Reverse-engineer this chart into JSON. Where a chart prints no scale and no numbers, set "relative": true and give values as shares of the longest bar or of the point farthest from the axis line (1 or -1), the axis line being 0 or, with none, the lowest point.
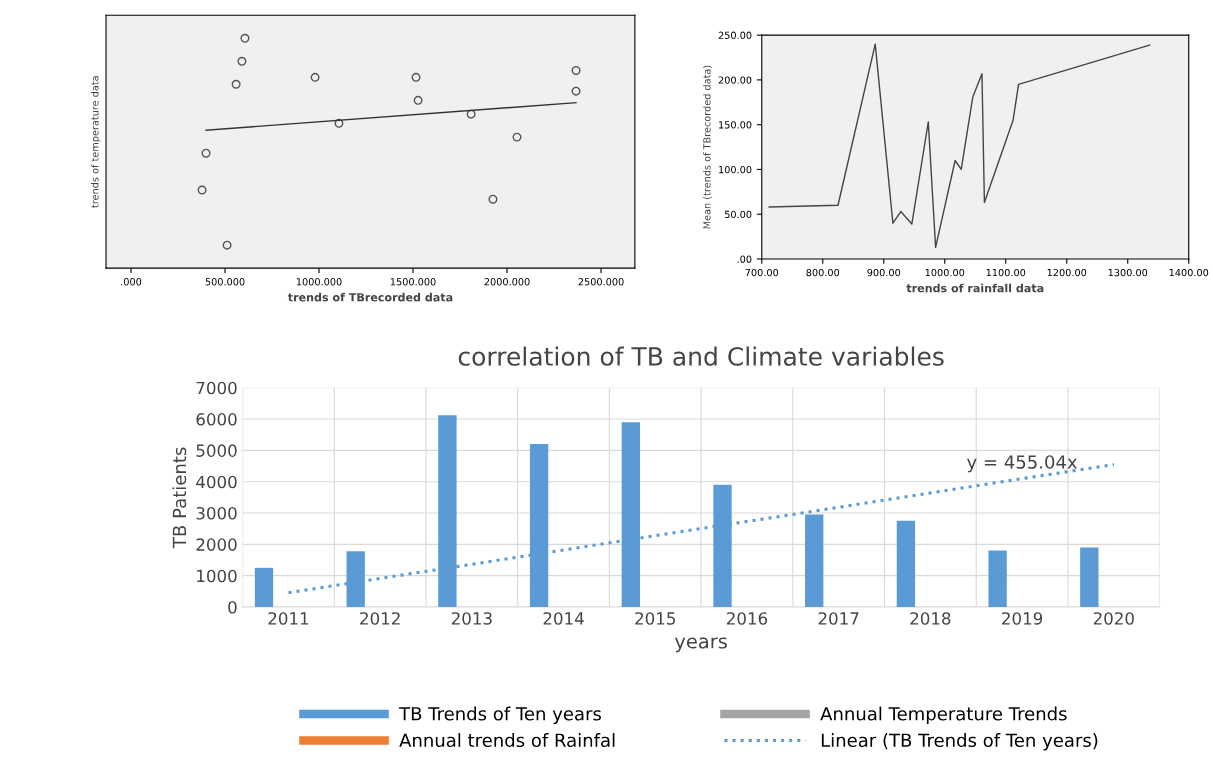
{
  "chart_data": [
    {
      "type": "scatter",
      "xlabel": "trends of TBrecorded data",
      "ylabel": "trends of temperature data",
      "relative": true,
      "tick_labels": "x",
      "marker": "circle",
      "grid": false,
      "xlim": [
        -133,
        2680
      ],
      "xticks": [
        {
          "value": 0,
          "label": ".000"
        },
        {
          "value": 500,
          "label": "500.000"
        },
        {
          "value": 1000,
          "label": "1000.000"
        },
        {
          "value": 1500,
          "label": "1500.000"
        },
        {
          "value": 2000,
          "label": "2000.000"
        },
        {
          "value": 2500,
          "label": "2500.000"
        }
      ],
      "series": [
        {
          "type": "scatter",
          "color": "#555555",
          "x": [
            606,
            590,
            559,
            979,
            1516,
            1527,
            2367,
            2367,
            1106,
            1809,
            2053,
            399,
            378,
            1925,
            511
          ],
          "values": [
            1.0,
            0.9,
            0.8,
            0.83,
            0.83,
            0.73,
            0.86,
            0.77,
            0.63,
            0.67,
            0.57,
            0.5,
            0.34,
            0.3,
            0.1
          ]
        },
        {
          "type": "line",
          "marker": "none",
          "color": "#333333",
          "x": [
            399,
            2367
          ],
          "values": [
            0.6,
            0.72
          ]
        }
      ]
    },
    {
      "type": "line",
      "xlabel": "trends of rainfall data",
      "ylabel": "Mean (trends of TBrecorded data)",
      "grid": false,
      "marker": "none",
      "xlim": [
        700,
        1400
      ],
      "xticks": [
        {
          "value": 700,
          "label": "700.00"
        },
        {
          "value": 800,
          "label": "800.00"
        },
        {
          "value": 900,
          "label": "900.00"
        },
        {
          "value": 1000,
          "label": "1000.00"
        },
        {
          "value": 1100,
          "label": "1100.00"
        },
        {
          "value": 1200,
          "label": "1200.00"
        },
        {
          "value": 1300,
          "label": "1300.00"
        },
        {
          "value": 1400,
          "label": "1400.00"
        }
      ],
      "ylim": [
        0,
        250
      ],
      "yticks": [
        {
          "value": 0,
          "label": ".00"
        },
        {
          "value": 50,
          "label": "50.00"
        },
        {
          "value": 100,
          "label": "100.00"
        },
        {
          "value": 150,
          "label": "150.00"
        },
        {
          "value": 200,
          "label": "200.00"
        },
        {
          "value": 250,
          "label": "250.00"
        }
      ],
      "series": [
        {
          "color": "#444444",
          "x": [
            712,
            825,
            886,
            915,
            928,
            946,
            973,
            985,
            1017,
            1027,
            1046,
            1061,
            1065,
            1112,
            1121,
            1336
          ],
          "values": [
            58,
            60,
            240,
            40,
            53,
            39,
            153,
            13,
            110,
            100,
            181,
            207,
            63,
            155,
            195,
            239
          ]
        }
      ]
    },
    {
      "type": "bar",
      "title": "correlation of TB and Climate variables",
      "xlabel": "years",
      "ylabel": "TB Patients",
      "grid": true,
      "legend": "bottom",
      "categories": [
        "2011",
        "2012",
        "2013",
        "2014",
        "2015",
        "2016",
        "2017",
        "2018",
        "2019",
        "2020"
      ],
      "ylim": [
        0,
        7000
      ],
      "yticks": [
        0,
        1000,
        2000,
        3000,
        4000,
        5000,
        6000,
        7000
      ],
      "annotations": [
        {
          "text": "y = 455.04x",
          "x": "2019",
          "y": 4300
        }
      ],
      "series": [
        {
          "name": "TB Trends of Ten years",
          "color": "#5b9bd5",
          "values": [
            1250,
            1780,
            6120,
            5200,
            5900,
            3900,
            2950,
            2750,
            1800,
            1900
          ]
        },
        {
          "name": "Annual trends of Rainfal",
          "color": "#ed7d31",
          "values": [
            0,
            0,
            0,
            0,
            0,
            0,
            0,
            0,
            0,
            0
          ]
        },
        {
          "name": "Annual Temperature Trends",
          "color": "#a5a5a5",
          "values": [
            0,
            0,
            0,
            0,
            0,
            0,
            0,
            0,
            0,
            0
          ]
        },
        {
          "name": "Linear (TB Trends of Ten years)",
          "type": "line",
          "line_style": "dotted",
          "color": "#5b9bd5",
          "values": [
            455,
            910,
            1365,
            1820,
            2275,
            2730,
            3185,
            3640,
            4095,
            4550
          ]
        }
      ]
    }
  ]
}
